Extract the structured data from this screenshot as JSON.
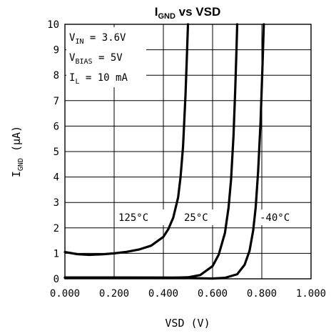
{
  "chart_data": {
    "type": "line",
    "title": {
      "main": "I",
      "sub": "GND",
      "rest": " vs VSD"
    },
    "xlabel": "VSD (V)",
    "ylabel": {
      "main": "I",
      "sub": "GND",
      "rest": " (μA)"
    },
    "xlim": [
      0,
      1.0
    ],
    "ylim": [
      0,
      10
    ],
    "x_ticks": [
      {
        "value": 0.0,
        "label": "0.000"
      },
      {
        "value": 0.2,
        "label": "0.200"
      },
      {
        "value": 0.4,
        "label": "0.400"
      },
      {
        "value": 0.6,
        "label": "0.600"
      },
      {
        "value": 0.8,
        "label": "0.800"
      },
      {
        "value": 1.0,
        "label": "1.000"
      }
    ],
    "y_ticks": [
      {
        "value": 0,
        "label": "0"
      },
      {
        "value": 1,
        "label": "1"
      },
      {
        "value": 2,
        "label": "2"
      },
      {
        "value": 3,
        "label": "3"
      },
      {
        "value": 4,
        "label": "4"
      },
      {
        "value": 5,
        "label": "5"
      },
      {
        "value": 6,
        "label": "6"
      },
      {
        "value": 7,
        "label": "7"
      },
      {
        "value": 8,
        "label": "8"
      },
      {
        "value": 9,
        "label": "9"
      },
      {
        "value": 10,
        "label": "10"
      }
    ],
    "grid": true,
    "conditions": [
      {
        "main": "V",
        "sub": "IN",
        "rest": " = 3.6V"
      },
      {
        "main": "V",
        "sub": "BIAS",
        "rest": " = 5V"
      },
      {
        "main": "I",
        "sub": "L",
        "rest": " = 10 mA"
      }
    ],
    "series": [
      {
        "name": "125°C",
        "x": [
          0.0,
          0.05,
          0.1,
          0.15,
          0.2,
          0.25,
          0.3,
          0.35,
          0.4,
          0.42,
          0.44,
          0.46,
          0.47,
          0.48,
          0.49,
          0.495,
          0.5
        ],
        "y": [
          1.05,
          0.97,
          0.94,
          0.96,
          1.0,
          1.06,
          1.15,
          1.3,
          1.65,
          1.95,
          2.4,
          3.2,
          4.0,
          5.2,
          7.2,
          8.6,
          10.0
        ]
      },
      {
        "name": "25°C",
        "x": [
          0.0,
          0.2,
          0.4,
          0.5,
          0.55,
          0.6,
          0.625,
          0.65,
          0.665,
          0.675,
          0.685,
          0.692,
          0.697,
          0.7
        ],
        "y": [
          0.05,
          0.05,
          0.04,
          0.06,
          0.15,
          0.5,
          0.95,
          1.8,
          2.8,
          3.9,
          5.6,
          7.4,
          9.0,
          10.0
        ]
      },
      {
        "name": "-40°C",
        "x": [
          0.0,
          0.4,
          0.6,
          0.65,
          0.7,
          0.73,
          0.75,
          0.765,
          0.775,
          0.785,
          0.795,
          0.803,
          0.808
        ],
        "y": [
          0.05,
          0.05,
          0.01,
          0.04,
          0.18,
          0.55,
          1.1,
          1.9,
          2.8,
          4.2,
          6.2,
          8.4,
          10.0
        ]
      }
    ]
  }
}
